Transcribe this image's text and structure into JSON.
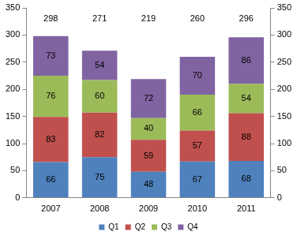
{
  "chart_data": {
    "type": "bar",
    "categories": [
      "2007",
      "2008",
      "2009",
      "2010",
      "2011"
    ],
    "series": [
      {
        "name": "Q1",
        "color": "#4f81bd",
        "values": [
          66,
          75,
          48,
          67,
          68
        ]
      },
      {
        "name": "Q2",
        "color": "#c0504d",
        "values": [
          83,
          82,
          59,
          57,
          88
        ]
      },
      {
        "name": "Q3",
        "color": "#9bbb59",
        "values": [
          76,
          60,
          40,
          66,
          54
        ]
      },
      {
        "name": "Q4",
        "color": "#8064a2",
        "values": [
          73,
          54,
          72,
          70,
          86
        ]
      }
    ],
    "totals": [
      298,
      271,
      219,
      260,
      296
    ],
    "ylim": [
      0,
      350
    ],
    "yticks": [
      0,
      50,
      100,
      150,
      200,
      250,
      300,
      350
    ],
    "y2lim": [
      0,
      350
    ],
    "y2ticks": [
      0,
      50,
      100,
      150,
      200,
      250,
      300,
      350
    ],
    "stacked": true,
    "data_labels": true,
    "grid": false,
    "legend": "bottom"
  }
}
